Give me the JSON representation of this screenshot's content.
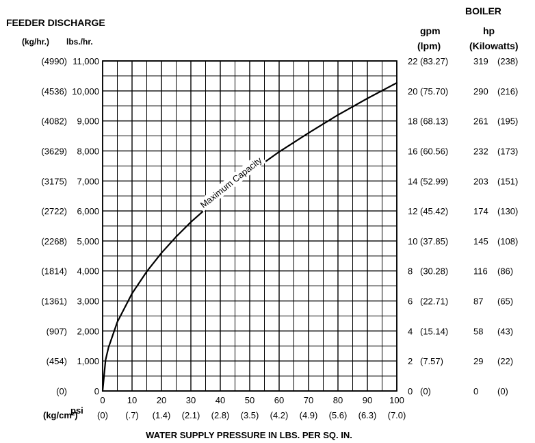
{
  "chart_data": {
    "type": "line",
    "left_axis": {
      "title": "FEEDER DISCHARGE",
      "unit_metric": "(kg/hr.)",
      "unit_imperial": "lbs./hr.",
      "ticks": [
        {
          "value": 0,
          "metric": "(0)",
          "label": "0"
        },
        {
          "value": 1000,
          "metric": "(454)",
          "label": "1,000"
        },
        {
          "value": 2000,
          "metric": "(907)",
          "label": "2,000"
        },
        {
          "value": 3000,
          "metric": "(1361)",
          "label": "3,000"
        },
        {
          "value": 4000,
          "metric": "(1814)",
          "label": "4,000"
        },
        {
          "value": 5000,
          "metric": "(2268)",
          "label": "5,000"
        },
        {
          "value": 6000,
          "metric": "(2722)",
          "label": "6,000"
        },
        {
          "value": 7000,
          "metric": "(3175)",
          "label": "7,000"
        },
        {
          "value": 8000,
          "metric": "(3629)",
          "label": "8,000"
        },
        {
          "value": 9000,
          "metric": "(4082)",
          "label": "9,000"
        },
        {
          "value": 10000,
          "metric": "(4536)",
          "label": "10,000"
        },
        {
          "value": 11000,
          "metric": "(4990)",
          "label": "11,000"
        }
      ]
    },
    "right_axis": {
      "title": "BOILER",
      "col1_title": "gpm",
      "col1_sub": "(lpm)",
      "col2_title": "hp",
      "col2_sub": "(Kilowatts)",
      "ticks": [
        {
          "value": 0,
          "gpm": "0",
          "lpm": "(0)",
          "hp": "0",
          "kw": "(0)"
        },
        {
          "value": 1000,
          "gpm": "2",
          "lpm": "(7.57)",
          "hp": "29",
          "kw": "(22)"
        },
        {
          "value": 2000,
          "gpm": "4",
          "lpm": "(15.14)",
          "hp": "58",
          "kw": "(43)"
        },
        {
          "value": 3000,
          "gpm": "6",
          "lpm": "(22.71)",
          "hp": "87",
          "kw": "(65)"
        },
        {
          "value": 4000,
          "gpm": "8",
          "lpm": "(30.28)",
          "hp": "116",
          "kw": "(86)"
        },
        {
          "value": 5000,
          "gpm": "10",
          "lpm": "(37.85)",
          "hp": "145",
          "kw": "(108)"
        },
        {
          "value": 6000,
          "gpm": "12",
          "lpm": "(45.42)",
          "hp": "174",
          "kw": "(130)"
        },
        {
          "value": 7000,
          "gpm": "14",
          "lpm": "(52.99)",
          "hp": "203",
          "kw": "(151)"
        },
        {
          "value": 8000,
          "gpm": "16",
          "lpm": "(60.56)",
          "hp": "232",
          "kw": "(173)"
        },
        {
          "value": 9000,
          "gpm": "18",
          "lpm": "(68.13)",
          "hp": "261",
          "kw": "(195)"
        },
        {
          "value": 10000,
          "gpm": "20",
          "lpm": "(75.70)",
          "hp": "290",
          "kw": "(216)"
        },
        {
          "value": 11000,
          "gpm": "22",
          "lpm": "(83.27)",
          "hp": "319",
          "kw": "(238)"
        }
      ]
    },
    "x_axis": {
      "unit_label": "psi",
      "metric_unit_label": "(kg/cm²)",
      "title": "WATER SUPPLY PRESSURE IN LBS. PER SQ. IN.",
      "ticks": [
        {
          "value": 0,
          "label": "0",
          "metric": "(0)"
        },
        {
          "value": 10,
          "label": "10",
          "metric": "(.7)"
        },
        {
          "value": 20,
          "label": "20",
          "metric": "(1.4)"
        },
        {
          "value": 30,
          "label": "30",
          "metric": "(2.1)"
        },
        {
          "value": 40,
          "label": "40",
          "metric": "(2.8)"
        },
        {
          "value": 50,
          "label": "50",
          "metric": "(3.5)"
        },
        {
          "value": 60,
          "label": "60",
          "metric": "(4.2)"
        },
        {
          "value": 70,
          "label": "70",
          "metric": "(4.9)"
        },
        {
          "value": 80,
          "label": "80",
          "metric": "(5.6)"
        },
        {
          "value": 90,
          "label": "90",
          "metric": "(6.3)"
        },
        {
          "value": 100,
          "label": "100",
          "metric": "(7.0)"
        }
      ]
    },
    "xlim": [
      0,
      100
    ],
    "ylim": [
      0,
      11000
    ],
    "grid": true,
    "series": [
      {
        "name": "Maximum Capacity",
        "x": [
          0,
          1,
          2,
          5,
          10,
          15,
          20,
          25,
          30,
          40,
          50,
          60,
          70,
          80,
          90,
          100
        ],
        "y": [
          0,
          1030,
          1450,
          2300,
          3250,
          3980,
          4600,
          5140,
          5630,
          6500,
          7270,
          7970,
          8600,
          9200,
          9750,
          10270
        ]
      }
    ]
  }
}
